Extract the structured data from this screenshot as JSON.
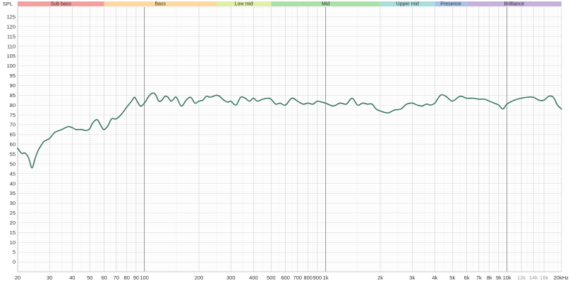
{
  "chart_data": {
    "type": "line",
    "title": "",
    "xlabel": "",
    "ylabel": "SPL",
    "x_scale": "log",
    "xlim": [
      20,
      20000
    ],
    "ylim": [
      -5,
      130
    ],
    "grid": true,
    "y_ticks": [
      {
        "value": 0,
        "label": "0"
      },
      {
        "value": 5,
        "label": "5"
      },
      {
        "value": 10,
        "label": "10"
      },
      {
        "value": 15,
        "label": "15"
      },
      {
        "value": 20,
        "label": "20"
      },
      {
        "value": 25,
        "label": "25"
      },
      {
        "value": 30,
        "label": "30"
      },
      {
        "value": 35,
        "label": "35"
      },
      {
        "value": 40,
        "label": "40"
      },
      {
        "value": 45,
        "label": "45"
      },
      {
        "value": 50,
        "label": "50"
      },
      {
        "value": 55,
        "label": "55"
      },
      {
        "value": 60,
        "label": "60"
      },
      {
        "value": 65,
        "label": "65"
      },
      {
        "value": 70,
        "label": "70"
      },
      {
        "value": 75,
        "label": "75"
      },
      {
        "value": 80,
        "label": "80"
      },
      {
        "value": 85,
        "label": "85"
      },
      {
        "value": 90,
        "label": "90"
      },
      {
        "value": 95,
        "label": "95"
      },
      {
        "value": 100,
        "label": "100"
      },
      {
        "value": 105,
        "label": "105"
      },
      {
        "value": 110,
        "label": "110"
      },
      {
        "value": 115,
        "label": "115"
      },
      {
        "value": 120,
        "label": "120"
      },
      {
        "value": 125,
        "label": "125"
      }
    ],
    "x_ticks": [
      {
        "value": 20,
        "label": "20"
      },
      {
        "value": 30,
        "label": "30"
      },
      {
        "value": 40,
        "label": "40"
      },
      {
        "value": 50,
        "label": "50"
      },
      {
        "value": 60,
        "label": "60"
      },
      {
        "value": 70,
        "label": "70"
      },
      {
        "value": 80,
        "label": "80"
      },
      {
        "value": 90,
        "label": "90"
      },
      {
        "value": 100,
        "label": "100"
      },
      {
        "value": 200,
        "label": "200"
      },
      {
        "value": 300,
        "label": "300"
      },
      {
        "value": 400,
        "label": "400"
      },
      {
        "value": 500,
        "label": "500"
      },
      {
        "value": 600,
        "label": "600"
      },
      {
        "value": 700,
        "label": "700"
      },
      {
        "value": 800,
        "label": "800"
      },
      {
        "value": 900,
        "label": "900"
      },
      {
        "value": 1000,
        "label": "1k"
      },
      {
        "value": 2000,
        "label": "2k"
      },
      {
        "value": 3000,
        "label": "3k"
      },
      {
        "value": 4000,
        "label": "4k"
      },
      {
        "value": 5000,
        "label": "5k"
      },
      {
        "value": 6000,
        "label": "6k"
      },
      {
        "value": 7000,
        "label": "7k"
      },
      {
        "value": 8000,
        "label": "8k"
      },
      {
        "value": 9000,
        "label": "9k"
      },
      {
        "value": 10000,
        "label": "10k"
      },
      {
        "value": 12000,
        "label": "12k",
        "muted": true
      },
      {
        "value": 14000,
        "label": "14k",
        "muted": true
      },
      {
        "value": 16000,
        "label": "16k",
        "muted": true
      },
      {
        "value": 20000,
        "label": "20kHz"
      }
    ],
    "bands": [
      {
        "name": "Sub bass",
        "from": 20,
        "to": 60,
        "color": "#f4a0a0"
      },
      {
        "name": "Bass",
        "from": 60,
        "to": 250,
        "color": "#fbd9a0"
      },
      {
        "name": "Low mid",
        "from": 250,
        "to": 500,
        "color": "#dff0a8"
      },
      {
        "name": "Mid",
        "from": 500,
        "to": 2000,
        "color": "#a8e2a8"
      },
      {
        "name": "Upper mid",
        "from": 2000,
        "to": 4000,
        "color": "#a8dede"
      },
      {
        "name": "Presence",
        "from": 4000,
        "to": 6000,
        "color": "#a8c2ec"
      },
      {
        "name": "Brilliance",
        "from": 6000,
        "to": 20000,
        "color": "#c6b0dc"
      }
    ],
    "series": [
      {
        "color": "#3d7a62",
        "x": [
          20,
          21,
          22,
          23,
          24,
          25,
          26,
          27,
          28,
          30,
          32,
          35,
          38,
          40,
          42,
          45,
          48,
          50,
          52,
          55,
          58,
          60,
          63,
          66,
          70,
          75,
          80,
          85,
          88,
          90,
          95,
          100,
          105,
          110,
          115,
          120,
          125,
          130,
          135,
          140,
          145,
          150,
          160,
          170,
          180,
          190,
          200,
          210,
          220,
          230,
          240,
          250,
          260,
          270,
          280,
          290,
          300,
          320,
          340,
          360,
          380,
          400,
          420,
          450,
          480,
          500,
          530,
          560,
          600,
          650,
          700,
          750,
          800,
          850,
          900,
          950,
          1000,
          1100,
          1200,
          1300,
          1400,
          1500,
          1600,
          1700,
          1800,
          1900,
          2000,
          2200,
          2400,
          2600,
          2800,
          3000,
          3200,
          3400,
          3600,
          3800,
          4000,
          4300,
          4600,
          5000,
          5500,
          6000,
          6500,
          7000,
          7500,
          8000,
          8500,
          9000,
          9500,
          10000,
          11000,
          12000,
          13000,
          14000,
          15000,
          16000,
          17000,
          18000,
          19000,
          20000
        ],
        "values": [
          58,
          55.5,
          55.5,
          53,
          48,
          53,
          57,
          59.5,
          61.5,
          63,
          66,
          67.5,
          69,
          68.5,
          67.5,
          67.5,
          67,
          68,
          71,
          72.5,
          69,
          67.5,
          69.5,
          73,
          73,
          75.5,
          79,
          82,
          84,
          83,
          79.5,
          81,
          84,
          86,
          85.5,
          82,
          82.5,
          84.5,
          84,
          82,
          83,
          84,
          79.5,
          82.5,
          84,
          81,
          82,
          82.5,
          84.5,
          84,
          84.5,
          85,
          84.5,
          83,
          82,
          81.5,
          82,
          80,
          84,
          83.5,
          82,
          83.5,
          82,
          83,
          83.5,
          83,
          80.5,
          81,
          80,
          83.5,
          82,
          80.5,
          81,
          80.5,
          82,
          81.5,
          81,
          79.5,
          81,
          80.5,
          83.5,
          80,
          81,
          80.5,
          80.5,
          78,
          77,
          76,
          77.5,
          78,
          80.5,
          81,
          80,
          79.5,
          80.5,
          80,
          81,
          85,
          84.5,
          82,
          84.5,
          83.5,
          83.5,
          83,
          83,
          82,
          81,
          80,
          78,
          80.5,
          82.5,
          83.5,
          84,
          84,
          82.5,
          82.5,
          84.5,
          84,
          80,
          78
        ]
      }
    ]
  }
}
